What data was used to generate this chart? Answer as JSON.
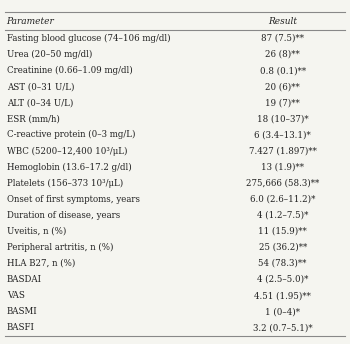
{
  "headers": [
    "Parameter",
    "Result"
  ],
  "rows": [
    [
      "Fasting blood glucose (74–106 mg/dl)",
      "87 (7.5)**"
    ],
    [
      "Urea (20–50 mg/dl)",
      "26 (8)**"
    ],
    [
      "Creatinine (0.66–1.09 mg/dl)",
      "0.8 (0.1)**"
    ],
    [
      "AST (0–31 U/L)",
      "20 (6)**"
    ],
    [
      "ALT (0–34 U/L)",
      "19 (7)**"
    ],
    [
      "ESR (mm/h)",
      "18 (10–37)*"
    ],
    [
      "C-reactive protein (0–3 mg/L)",
      "6 (3.4–13.1)*"
    ],
    [
      "WBC (5200–12,400 10³/μL)",
      "7.427 (1.897)**"
    ],
    [
      "Hemoglobin (13.6–17.2 g/dl)",
      "13 (1.9)**"
    ],
    [
      "Platelets (156–373 10³/μL)",
      "275,666 (58.3)**"
    ],
    [
      "Onset of first symptoms, years",
      "6.0 (2.6–11.2)*"
    ],
    [
      "Duration of disease, years",
      "4 (1.2–7.5)*"
    ],
    [
      "Uveitis, n (%)",
      "11 (15.9)**"
    ],
    [
      "Peripheral artritis, n (%)",
      "25 (36.2)**"
    ],
    [
      "HLA B27, n (%)",
      "54 (78.3)**"
    ],
    [
      "BASDAI",
      "4 (2.5–5.0)*"
    ],
    [
      "VAS",
      "4.51 (1.95)**"
    ],
    [
      "BASMI",
      "1 (0–4)*"
    ],
    [
      "BASFI",
      "3.2 (0.7–5.1)*"
    ]
  ],
  "col_split": 0.63,
  "fig_width": 3.5,
  "fig_height": 3.44,
  "font_size": 6.2,
  "header_font_size": 6.5,
  "bg_color": "#f5f5f0",
  "line_color": "#888888",
  "text_color": "#222222"
}
